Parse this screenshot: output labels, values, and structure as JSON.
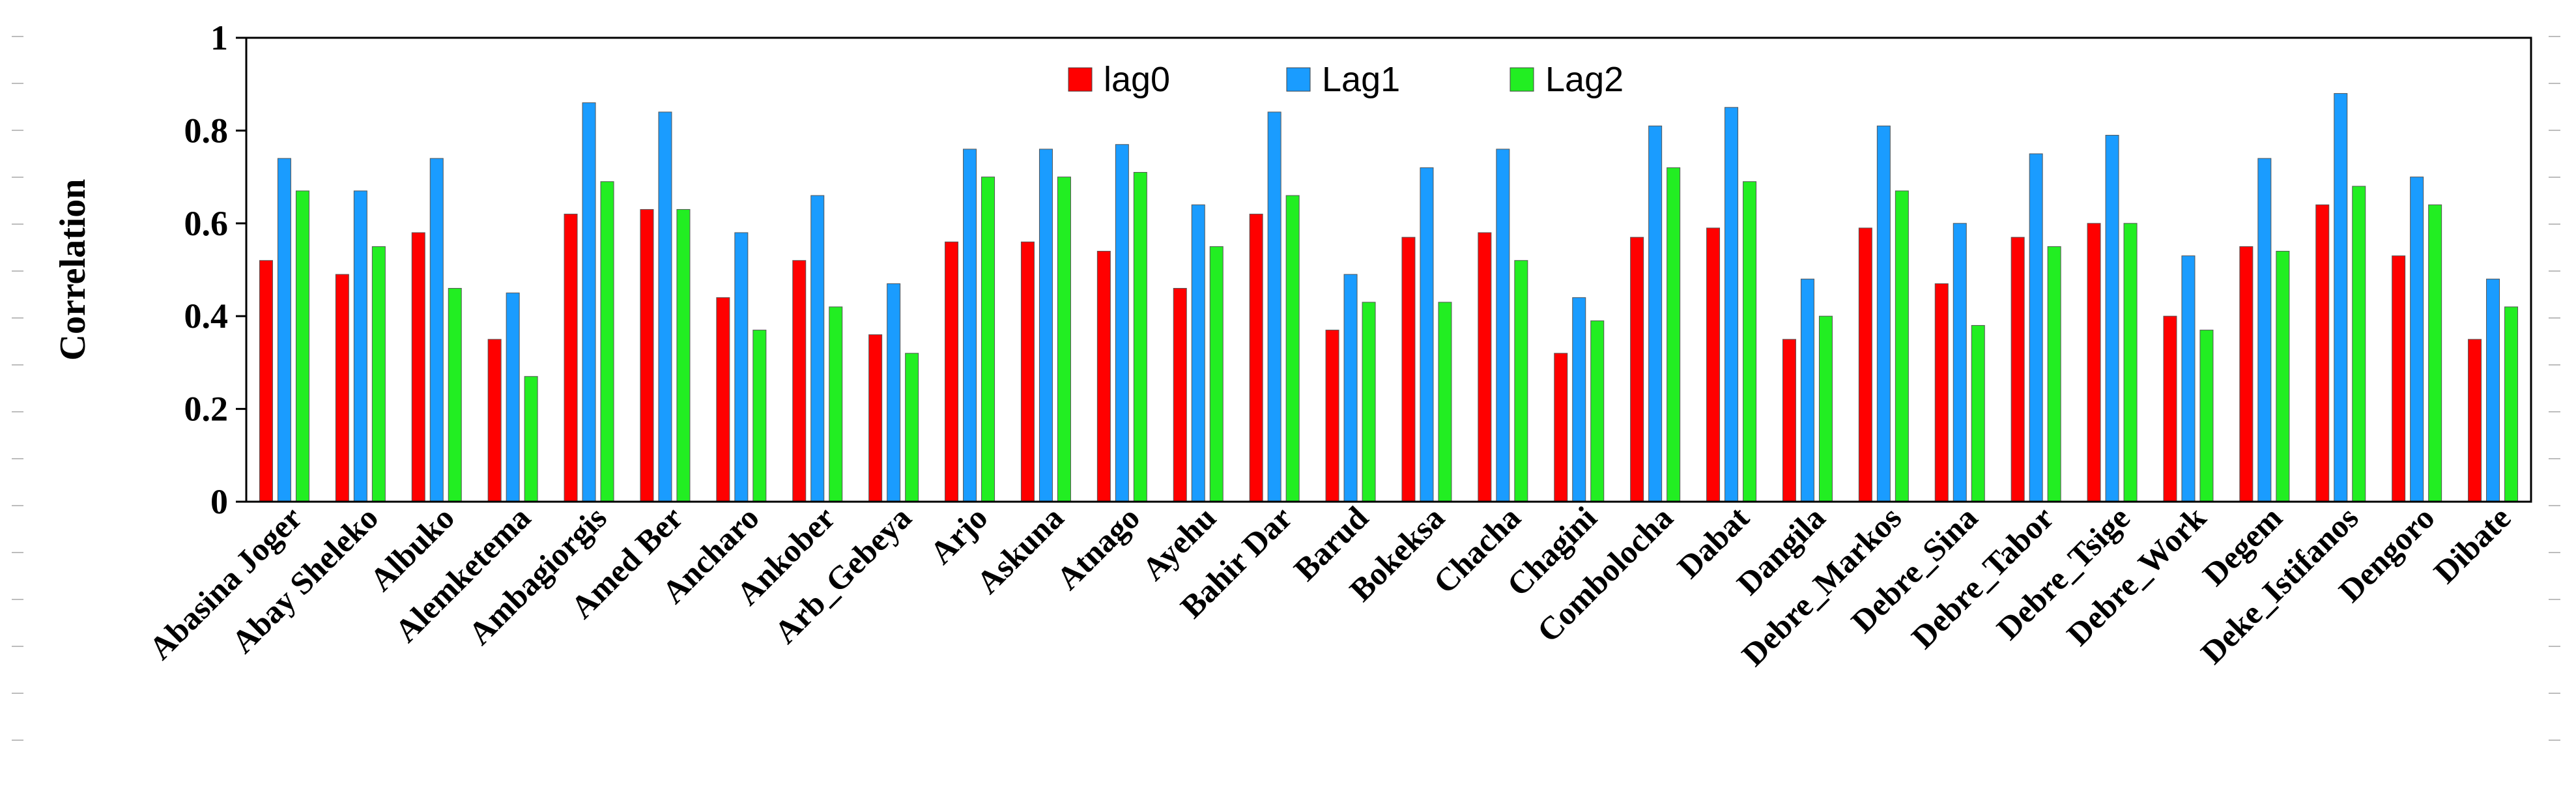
{
  "chart_data": {
    "type": "bar",
    "title": "",
    "xlabel": "",
    "ylabel": "Correlation",
    "ylim": [
      0,
      1
    ],
    "yticks": [
      "0",
      "0.2",
      "0.4",
      "0.6",
      "0.8",
      "1"
    ],
    "legend_position": "top-center",
    "categories": [
      "Abasina Joger",
      "Abay Sheleko",
      "Albuko",
      "Alemketema",
      "Ambagiorgis",
      "Amed Ber",
      "Ancharo",
      "Ankober",
      "Arb_Gebeya",
      "Arjo",
      "Askuna",
      "Atnago",
      "Ayehu",
      "Bahir Dar",
      "Barud",
      "Bokeksa",
      "Chacha",
      "Chagini",
      "Combolocha",
      "Dabat",
      "Dangila",
      "Debre_Markos",
      "Debre_Sina",
      "Debre_Tabor",
      "Debre_Tsige",
      "Debre_Work",
      "Degem",
      "Deke_Istifanos",
      "Dengoro",
      "Dibate"
    ],
    "series": [
      {
        "name": "lag0",
        "color": "#ff0000",
        "values": [
          0.52,
          0.49,
          0.58,
          0.35,
          0.62,
          0.63,
          0.44,
          0.52,
          0.36,
          0.56,
          0.56,
          0.54,
          0.46,
          0.62,
          0.37,
          0.57,
          0.58,
          0.32,
          0.57,
          0.59,
          0.35,
          0.59,
          0.47,
          0.57,
          0.6,
          0.4,
          0.55,
          0.64,
          0.53,
          0.35
        ]
      },
      {
        "name": "Lag1",
        "color": "#1a9cff",
        "values": [
          0.74,
          0.67,
          0.74,
          0.45,
          0.86,
          0.84,
          0.58,
          0.66,
          0.47,
          0.76,
          0.76,
          0.77,
          0.64,
          0.84,
          0.49,
          0.72,
          0.76,
          0.44,
          0.81,
          0.85,
          0.48,
          0.81,
          0.6,
          0.75,
          0.79,
          0.53,
          0.74,
          0.88,
          0.7,
          0.48
        ]
      },
      {
        "name": "Lag2",
        "color": "#22ee22",
        "values": [
          0.67,
          0.55,
          0.46,
          0.27,
          0.69,
          0.63,
          0.37,
          0.42,
          0.32,
          0.7,
          0.7,
          0.71,
          0.55,
          0.66,
          0.43,
          0.43,
          0.52,
          0.39,
          0.72,
          0.69,
          0.4,
          0.67,
          0.38,
          0.55,
          0.6,
          0.37,
          0.54,
          0.68,
          0.64,
          0.42
        ]
      }
    ]
  }
}
